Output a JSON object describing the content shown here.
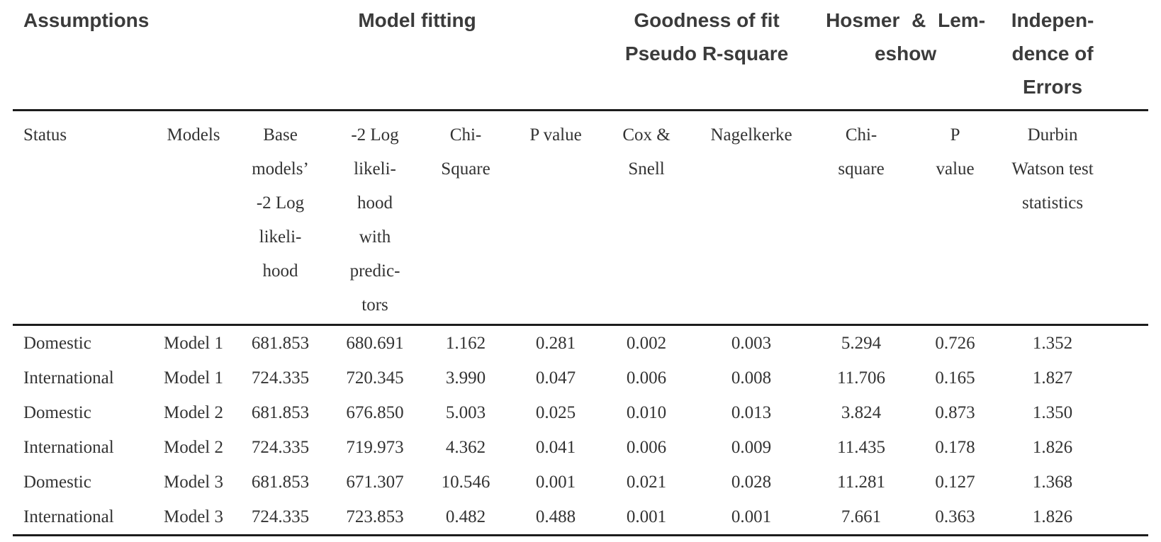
{
  "page": {
    "background": "#ffffff"
  },
  "table": {
    "colors": {
      "text_serif": "#333333",
      "text_bold_sans": "#3b3b3b",
      "rule": "#1c1c1c",
      "background": "#ffffff"
    },
    "group_headers": [
      {
        "label": "Assumptions",
        "colspan": 2
      },
      {
        "label": "Model fitting",
        "colspan": 4
      },
      {
        "label": "Goodness of fit\nPseudo R-square",
        "colspan": 2
      },
      {
        "label": "Hosmer & Lem-\neshow",
        "colspan": 2
      },
      {
        "label": "Indepen-\ndence of\nErrors",
        "colspan": 1
      }
    ],
    "column_headers": [
      "Status",
      "Models",
      "Base\nmodels’\n-2 Log\nlikeli-\nhood",
      "-2 Log\nlikeli-\nhood\nwith\npredic-\ntors",
      "Chi-\nSquare",
      "P value",
      "Cox &\nSnell",
      "Nagelkerke",
      "Chi-\nsquare",
      "P\nvalue",
      "Durbin\nWatson test\nstatistics"
    ],
    "rows": [
      [
        "Domestic",
        "Model 1",
        "681.853",
        "680.691",
        "1.162",
        "0.281",
        "0.002",
        "0.003",
        "5.294",
        "0.726",
        "1.352"
      ],
      [
        "International",
        "Model 1",
        "724.335",
        "720.345",
        "3.990",
        "0.047",
        "0.006",
        "0.008",
        "11.706",
        "0.165",
        "1.827"
      ],
      [
        "Domestic",
        "Model 2",
        "681.853",
        "676.850",
        "5.003",
        "0.025",
        "0.010",
        "0.013",
        "3.824",
        "0.873",
        "1.350"
      ],
      [
        "International",
        "Model 2",
        "724.335",
        "719.973",
        "4.362",
        "0.041",
        "0.006",
        "0.009",
        "11.435",
        "0.178",
        "1.826"
      ],
      [
        "Domestic",
        "Model 3",
        "681.853",
        "671.307",
        "10.546",
        "0.001",
        "0.021",
        "0.028",
        "11.281",
        "0.127",
        "1.368"
      ],
      [
        "International",
        "Model 3",
        "724.335",
        "723.853",
        "0.482",
        "0.488",
        "0.001",
        "0.001",
        "7.661",
        "0.363",
        "1.826"
      ]
    ]
  }
}
